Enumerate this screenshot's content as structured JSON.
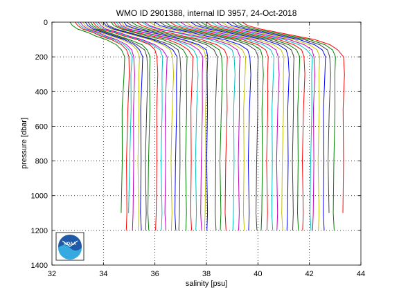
{
  "chart_data": {
    "type": "line",
    "title": "WMO ID 2901388, internal ID 3957, 24-Oct-2018",
    "xlabel": "salinity [psu]",
    "ylabel": "pressure [dbar]",
    "xlim": [
      32,
      44
    ],
    "ylim": [
      0,
      1400
    ],
    "y_reversed": true,
    "x_ticks": [
      "32",
      "34",
      "36",
      "38",
      "40",
      "42",
      "44"
    ],
    "y_ticks": [
      "0",
      "200",
      "400",
      "600",
      "800",
      "1000",
      "1200",
      "1400"
    ],
    "grid": true,
    "legend": "none",
    "logo": {
      "name": "noaa-logo",
      "text": "NOAA",
      "color": "#1e5aa8",
      "accent": "#35a9e0"
    },
    "series_profile_pressures": [
      0,
      20,
      40,
      60,
      80,
      100,
      130,
      160,
      200,
      300,
      500,
      800,
      1100,
      1200
    ],
    "series": [
      {
        "color": "#008000",
        "max_pressure": 1100,
        "values": [
          32.7,
          32.8,
          33.0,
          33.4,
          33.7,
          34.1,
          34.5,
          34.7,
          34.8,
          34.8,
          34.75,
          34.72,
          34.7,
          34.7
        ]
      },
      {
        "color": "#ff0000",
        "max_pressure": 1200,
        "values": [
          32.9,
          33.0,
          33.2,
          33.6,
          33.9,
          34.3,
          34.7,
          34.9,
          35.0,
          34.98,
          34.95,
          34.92,
          34.9,
          34.9
        ]
      },
      {
        "color": "#00bfbf",
        "max_pressure": 1100,
        "values": [
          33.0,
          33.1,
          33.3,
          33.7,
          34.0,
          34.4,
          34.8,
          35.0,
          35.1,
          35.08,
          35.05,
          35.02,
          35.0,
          35.0
        ]
      },
      {
        "color": "#bf00bf",
        "max_pressure": 1200,
        "values": [
          33.1,
          33.2,
          33.4,
          33.8,
          34.1,
          34.5,
          34.9,
          35.1,
          35.2,
          35.2,
          35.18,
          35.15,
          35.15,
          35.15
        ]
      },
      {
        "color": "#bfbf00",
        "max_pressure": 1200,
        "values": [
          33.2,
          33.3,
          33.5,
          33.9,
          34.3,
          34.7,
          35.1,
          35.3,
          35.4,
          35.4,
          35.37,
          35.35,
          35.35,
          35.35
        ]
      },
      {
        "color": "#0000ff",
        "max_pressure": 1200,
        "values": [
          33.3,
          33.4,
          33.6,
          34.0,
          34.4,
          34.8,
          35.2,
          35.4,
          35.5,
          35.5,
          35.47,
          35.45,
          35.45,
          35.45
        ]
      },
      {
        "color": "#404040",
        "max_pressure": 1200,
        "values": [
          33.4,
          33.5,
          33.7,
          34.1,
          34.5,
          34.9,
          35.3,
          35.6,
          35.7,
          35.7,
          35.68,
          35.65,
          35.65,
          35.65
        ]
      },
      {
        "color": "#008000",
        "max_pressure": 1200,
        "values": [
          33.5,
          33.6,
          33.8,
          34.2,
          34.6,
          35.0,
          35.5,
          35.7,
          35.8,
          35.8,
          35.78,
          35.75,
          35.75,
          35.75
        ]
      },
      {
        "color": "#ff0000",
        "max_pressure": 1200,
        "values": [
          33.6,
          33.7,
          33.9,
          34.4,
          34.8,
          35.3,
          35.8,
          36.0,
          36.1,
          36.1,
          36.08,
          36.05,
          36.05,
          36.05
        ]
      },
      {
        "color": "#00bfbf",
        "max_pressure": 1200,
        "values": [
          33.7,
          33.8,
          34.0,
          34.5,
          34.9,
          35.4,
          35.9,
          36.2,
          36.3,
          36.3,
          36.27,
          36.25,
          36.25,
          36.25
        ]
      },
      {
        "color": "#bf00bf",
        "max_pressure": 1200,
        "values": [
          33.8,
          33.9,
          34.1,
          34.6,
          35.0,
          35.5,
          36.0,
          36.3,
          36.45,
          36.45,
          36.42,
          36.4,
          36.4,
          36.4
        ]
      },
      {
        "color": "#bfbf00",
        "max_pressure": 1200,
        "values": [
          33.9,
          34.0,
          34.3,
          34.8,
          35.3,
          35.8,
          36.3,
          36.6,
          36.7,
          36.7,
          36.67,
          36.65,
          36.65,
          36.65
        ]
      },
      {
        "color": "#0000ff",
        "max_pressure": 1200,
        "values": [
          34.0,
          34.1,
          34.4,
          34.9,
          35.4,
          35.9,
          36.4,
          36.7,
          36.85,
          36.85,
          36.82,
          36.8,
          36.8,
          36.8
        ]
      },
      {
        "color": "#404040",
        "max_pressure": 1200,
        "values": [
          34.1,
          34.2,
          34.5,
          35.0,
          35.5,
          36.0,
          36.6,
          36.9,
          37.0,
          37.0,
          36.98,
          36.95,
          36.95,
          36.95
        ]
      },
      {
        "color": "#008000",
        "max_pressure": 1200,
        "values": [
          34.3,
          34.4,
          34.7,
          35.2,
          35.7,
          36.3,
          36.8,
          37.1,
          37.25,
          37.25,
          37.22,
          37.2,
          37.2,
          37.2
        ]
      },
      {
        "color": "#ff0000",
        "max_pressure": 1200,
        "values": [
          34.4,
          34.5,
          34.8,
          35.3,
          35.9,
          36.5,
          37.0,
          37.3,
          37.45,
          37.45,
          37.42,
          37.4,
          37.4,
          37.4
        ]
      },
      {
        "color": "#00bfbf",
        "max_pressure": 1200,
        "values": [
          34.5,
          34.6,
          34.9,
          35.5,
          36.1,
          36.7,
          37.2,
          37.5,
          37.65,
          37.65,
          37.62,
          37.6,
          37.6,
          37.6
        ]
      },
      {
        "color": "#bf00bf",
        "max_pressure": 1200,
        "values": [
          34.6,
          34.7,
          35.0,
          35.6,
          36.2,
          36.8,
          37.4,
          37.7,
          37.85,
          37.85,
          37.82,
          37.8,
          37.8,
          37.8
        ]
      },
      {
        "color": "#bfbf00",
        "max_pressure": 1200,
        "values": [
          34.7,
          34.8,
          35.2,
          35.8,
          36.4,
          37.0,
          37.6,
          37.9,
          38.0,
          38.0,
          37.98,
          37.95,
          37.95,
          37.95
        ]
      },
      {
        "color": "#0000ff",
        "max_pressure": 1200,
        "values": [
          34.8,
          34.9,
          35.3,
          35.9,
          36.5,
          37.1,
          37.7,
          38.0,
          38.05,
          38.05,
          38.03,
          38.02,
          38.02,
          38.02
        ]
      },
      {
        "color": "#404040",
        "max_pressure": 1200,
        "values": [
          34.9,
          35.1,
          35.5,
          36.1,
          36.7,
          37.4,
          38.0,
          38.3,
          38.4,
          38.4,
          38.37,
          38.35,
          38.35,
          38.35
        ]
      },
      {
        "color": "#008000",
        "max_pressure": 1200,
        "values": [
          35.1,
          35.3,
          35.7,
          36.3,
          36.9,
          37.6,
          38.2,
          38.5,
          38.6,
          38.6,
          38.58,
          38.55,
          38.55,
          38.55
        ]
      },
      {
        "color": "#ff0000",
        "max_pressure": 1200,
        "values": [
          35.3,
          35.5,
          35.9,
          36.5,
          37.1,
          37.8,
          38.4,
          38.7,
          38.8,
          38.8,
          38.78,
          38.75,
          38.75,
          38.75
        ]
      },
      {
        "color": "#00bfbf",
        "max_pressure": 1200,
        "values": [
          35.5,
          35.7,
          36.1,
          36.8,
          37.4,
          38.1,
          38.7,
          39.0,
          39.1,
          39.1,
          39.07,
          39.05,
          39.05,
          39.05
        ]
      },
      {
        "color": "#bf00bf",
        "max_pressure": 1200,
        "values": [
          35.6,
          35.8,
          36.2,
          36.9,
          37.6,
          38.3,
          38.9,
          39.2,
          39.3,
          39.3,
          39.27,
          39.25,
          39.25,
          39.25
        ]
      },
      {
        "color": "#bfbf00",
        "max_pressure": 1200,
        "values": [
          35.8,
          36.0,
          36.5,
          37.2,
          37.8,
          38.5,
          39.1,
          39.4,
          39.5,
          39.5,
          39.47,
          39.45,
          39.45,
          39.45
        ]
      },
      {
        "color": "#0000ff",
        "max_pressure": 1200,
        "values": [
          36.0,
          36.2,
          36.7,
          37.4,
          38.0,
          38.7,
          39.3,
          39.6,
          39.7,
          39.7,
          39.67,
          39.65,
          39.65,
          39.65
        ]
      },
      {
        "color": "#404040",
        "max_pressure": 1200,
        "values": [
          36.2,
          36.4,
          36.9,
          37.6,
          38.3,
          39.0,
          39.6,
          39.9,
          40.0,
          40.0,
          39.97,
          39.95,
          39.95,
          39.95
        ]
      },
      {
        "color": "#008000",
        "max_pressure": 1200,
        "values": [
          36.4,
          36.6,
          37.1,
          37.8,
          38.5,
          39.2,
          39.8,
          40.1,
          40.2,
          40.2,
          40.17,
          40.15,
          40.15,
          40.15
        ]
      },
      {
        "color": "#ff0000",
        "max_pressure": 1200,
        "values": [
          36.6,
          36.8,
          37.3,
          38.0,
          38.7,
          39.4,
          40.0,
          40.3,
          40.4,
          40.4,
          40.37,
          40.35,
          40.35,
          40.35
        ]
      },
      {
        "color": "#00bfbf",
        "max_pressure": 1200,
        "values": [
          36.8,
          37.0,
          37.5,
          38.2,
          38.9,
          39.6,
          40.2,
          40.5,
          40.6,
          40.6,
          40.57,
          40.55,
          40.55,
          40.55
        ]
      },
      {
        "color": "#bf00bf",
        "max_pressure": 1200,
        "values": [
          37.0,
          37.2,
          37.7,
          38.4,
          39.1,
          39.8,
          40.4,
          40.7,
          40.8,
          40.8,
          40.77,
          40.75,
          40.75,
          40.75
        ]
      },
      {
        "color": "#bfbf00",
        "max_pressure": 1200,
        "values": [
          37.2,
          37.4,
          37.9,
          38.6,
          39.3,
          40.0,
          40.6,
          40.9,
          41.0,
          41.0,
          40.97,
          40.95,
          40.95,
          40.95
        ]
      },
      {
        "color": "#0000ff",
        "max_pressure": 1200,
        "values": [
          37.4,
          37.6,
          38.1,
          38.8,
          39.5,
          40.2,
          40.8,
          41.1,
          41.2,
          41.2,
          41.17,
          41.15,
          41.15,
          41.15
        ]
      },
      {
        "color": "#404040",
        "max_pressure": 1200,
        "values": [
          37.6,
          37.8,
          38.3,
          39.0,
          39.7,
          40.4,
          41.0,
          41.3,
          41.4,
          41.4,
          41.37,
          41.35,
          41.35,
          41.35
        ]
      },
      {
        "color": "#008000",
        "max_pressure": 1200,
        "values": [
          37.8,
          38.0,
          38.5,
          39.2,
          39.9,
          40.6,
          41.2,
          41.5,
          41.6,
          41.6,
          41.57,
          41.55,
          41.55,
          41.55
        ]
      },
      {
        "color": "#ff0000",
        "max_pressure": 1200,
        "values": [
          38.0,
          38.2,
          38.7,
          39.4,
          40.1,
          40.8,
          41.4,
          41.7,
          41.8,
          41.8,
          41.77,
          41.75,
          41.75,
          41.75
        ]
      },
      {
        "color": "#00bfbf",
        "max_pressure": 1200,
        "values": [
          38.2,
          38.4,
          38.9,
          39.6,
          40.3,
          41.0,
          41.6,
          41.9,
          42.1,
          42.1,
          42.07,
          42.05,
          42.05,
          42.05
        ]
      },
      {
        "color": "#bf00bf",
        "max_pressure": 1200,
        "values": [
          38.4,
          38.6,
          39.1,
          39.8,
          40.5,
          41.2,
          41.8,
          42.1,
          42.2,
          42.2,
          42.17,
          42.15,
          42.15,
          42.15
        ]
      },
      {
        "color": "#bfbf00",
        "max_pressure": 1200,
        "values": [
          38.6,
          38.8,
          39.3,
          40.0,
          40.7,
          41.4,
          42.0,
          42.3,
          42.4,
          42.4,
          42.37,
          42.35,
          42.35,
          42.35
        ]
      },
      {
        "color": "#0000ff",
        "max_pressure": 1200,
        "values": [
          38.8,
          39.0,
          39.5,
          40.2,
          40.9,
          41.6,
          42.2,
          42.5,
          42.6,
          42.6,
          42.57,
          42.55,
          42.55,
          42.55
        ]
      },
      {
        "color": "#404040",
        "max_pressure": 1100,
        "values": [
          39.0,
          39.2,
          39.7,
          40.4,
          41.1,
          41.8,
          42.4,
          42.7,
          42.8,
          42.8,
          42.77,
          42.75,
          42.75,
          42.75
        ]
      },
      {
        "color": "#008000",
        "max_pressure": 1200,
        "values": [
          39.2,
          39.4,
          39.9,
          40.6,
          41.3,
          42.0,
          42.6,
          42.9,
          43.0,
          43.0,
          42.97,
          42.95,
          42.95,
          42.95
        ]
      },
      {
        "color": "#ff0000",
        "max_pressure": 1100,
        "values": [
          39.4,
          39.6,
          40.1,
          40.8,
          41.5,
          42.2,
          42.8,
          43.1,
          43.35,
          43.35,
          43.32,
          43.3,
          43.3,
          43.3
        ]
      }
    ]
  }
}
